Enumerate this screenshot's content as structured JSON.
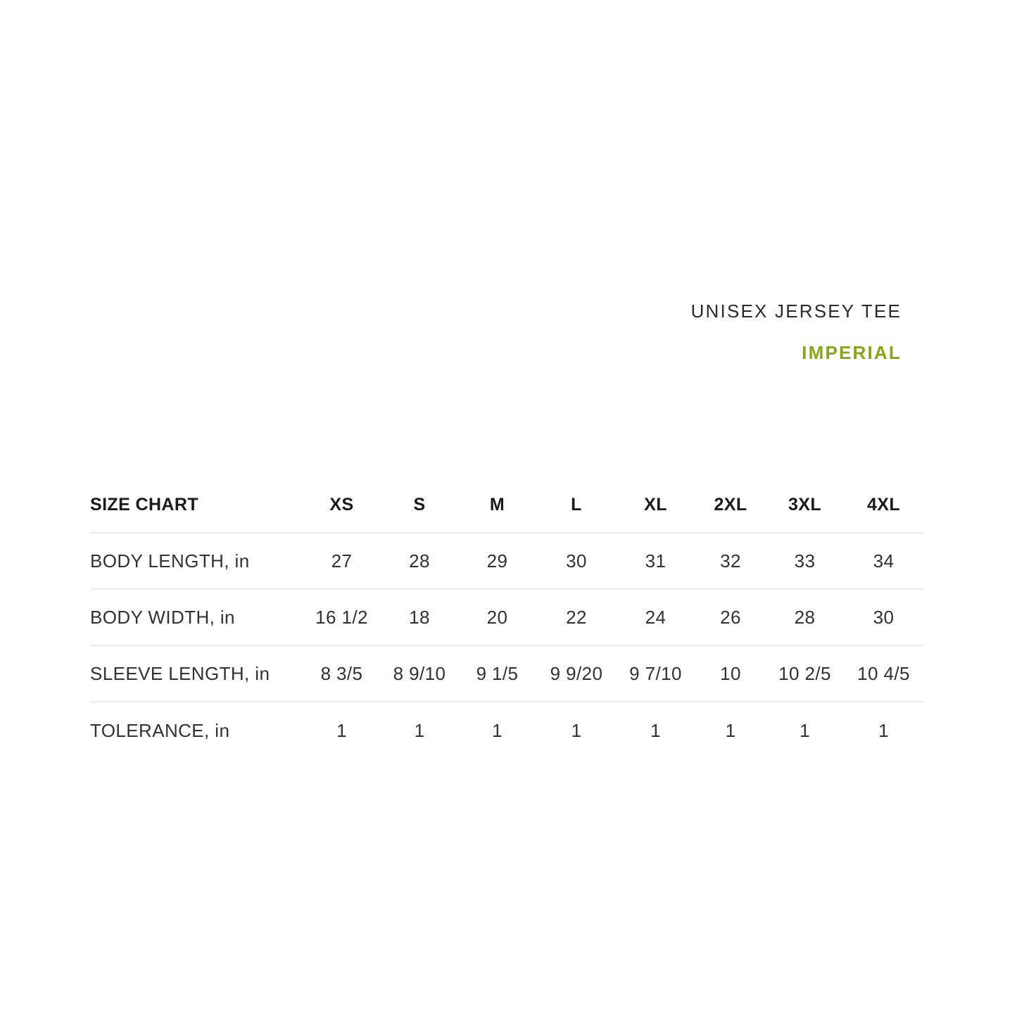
{
  "page": {
    "background": "#ffffff"
  },
  "header": {
    "product_title": "UNISEX JERSEY TEE",
    "unit_label": "IMPERIAL"
  },
  "colors": {
    "accent_green": "#84A71C",
    "title_text": "#2B2B2B",
    "table_header_text": "#1A1A1A",
    "table_body_text": "#323232",
    "divider": "#EDEDED"
  },
  "chart_data": {
    "type": "table",
    "title": "SIZE CHART",
    "columns": [
      "XS",
      "S",
      "M",
      "L",
      "XL",
      "2XL",
      "3XL",
      "4XL"
    ],
    "rows": [
      {
        "label": "BODY LENGTH, in",
        "values": [
          "27",
          "28",
          "29",
          "30",
          "31",
          "32",
          "33",
          "34"
        ]
      },
      {
        "label": "BODY WIDTH, in",
        "values": [
          "16 1/2",
          "18",
          "20",
          "22",
          "24",
          "26",
          "28",
          "30"
        ]
      },
      {
        "label": "SLEEVE LENGTH, in",
        "values": [
          "8 3/5",
          "8 9/10",
          "9 1/5",
          "9 9/20",
          "9 7/10",
          "10",
          "10 2/5",
          "10 4/5"
        ]
      },
      {
        "label": "TOLERANCE, in",
        "values": [
          "1",
          "1",
          "1",
          "1",
          "1",
          "1",
          "1",
          "1"
        ]
      }
    ]
  }
}
